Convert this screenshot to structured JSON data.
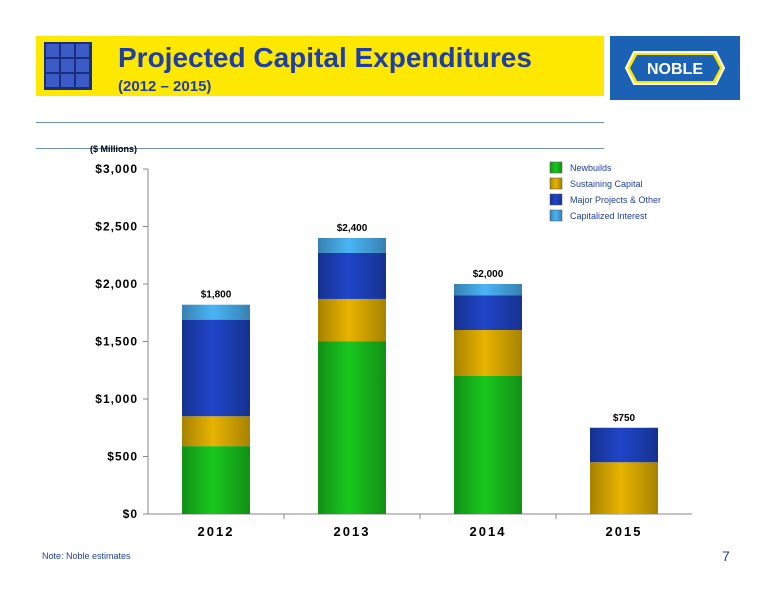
{
  "header": {
    "title": "Projected Capital Expenditures",
    "subtitle": "(2012 – 2015)",
    "brand": "NOBLE"
  },
  "footer": {
    "note": "Note:  Noble estimates",
    "page_number": "7"
  },
  "colors": {
    "banner": "#FFE800",
    "title": "#1F3FA8",
    "brand_box": "#1B62B5",
    "newbuilds": "#19C81E",
    "sustaining": "#E8B400",
    "major": "#1F45C8",
    "interest": "#4BB4F5"
  },
  "chart_data": {
    "type": "bar",
    "stacked": true,
    "unit_label": "($ Millions)",
    "categories": [
      "2012",
      "2013",
      "2014",
      "2015"
    ],
    "series": [
      {
        "name": "Newbuilds",
        "values": [
          590,
          1500,
          1200,
          0
        ]
      },
      {
        "name": "Sustaining Capital",
        "values": [
          260,
          370,
          400,
          450
        ]
      },
      {
        "name": "Major Projects & Other",
        "values": [
          840,
          400,
          300,
          300
        ]
      },
      {
        "name": "Capitalized Interest",
        "values": [
          130,
          130,
          100,
          0
        ]
      }
    ],
    "totals": [
      "$1,800",
      "$2,400",
      "$2,000",
      "$750"
    ],
    "ylim": [
      0,
      3000
    ],
    "yticks": [
      0,
      500,
      1000,
      1500,
      2000,
      2500,
      3000
    ],
    "ytick_labels": [
      "$0",
      "$500",
      "$1,000",
      "$1,500",
      "$2,000",
      "$2,500",
      "$3,000"
    ],
    "legend_position": "top-right",
    "grid": false
  }
}
